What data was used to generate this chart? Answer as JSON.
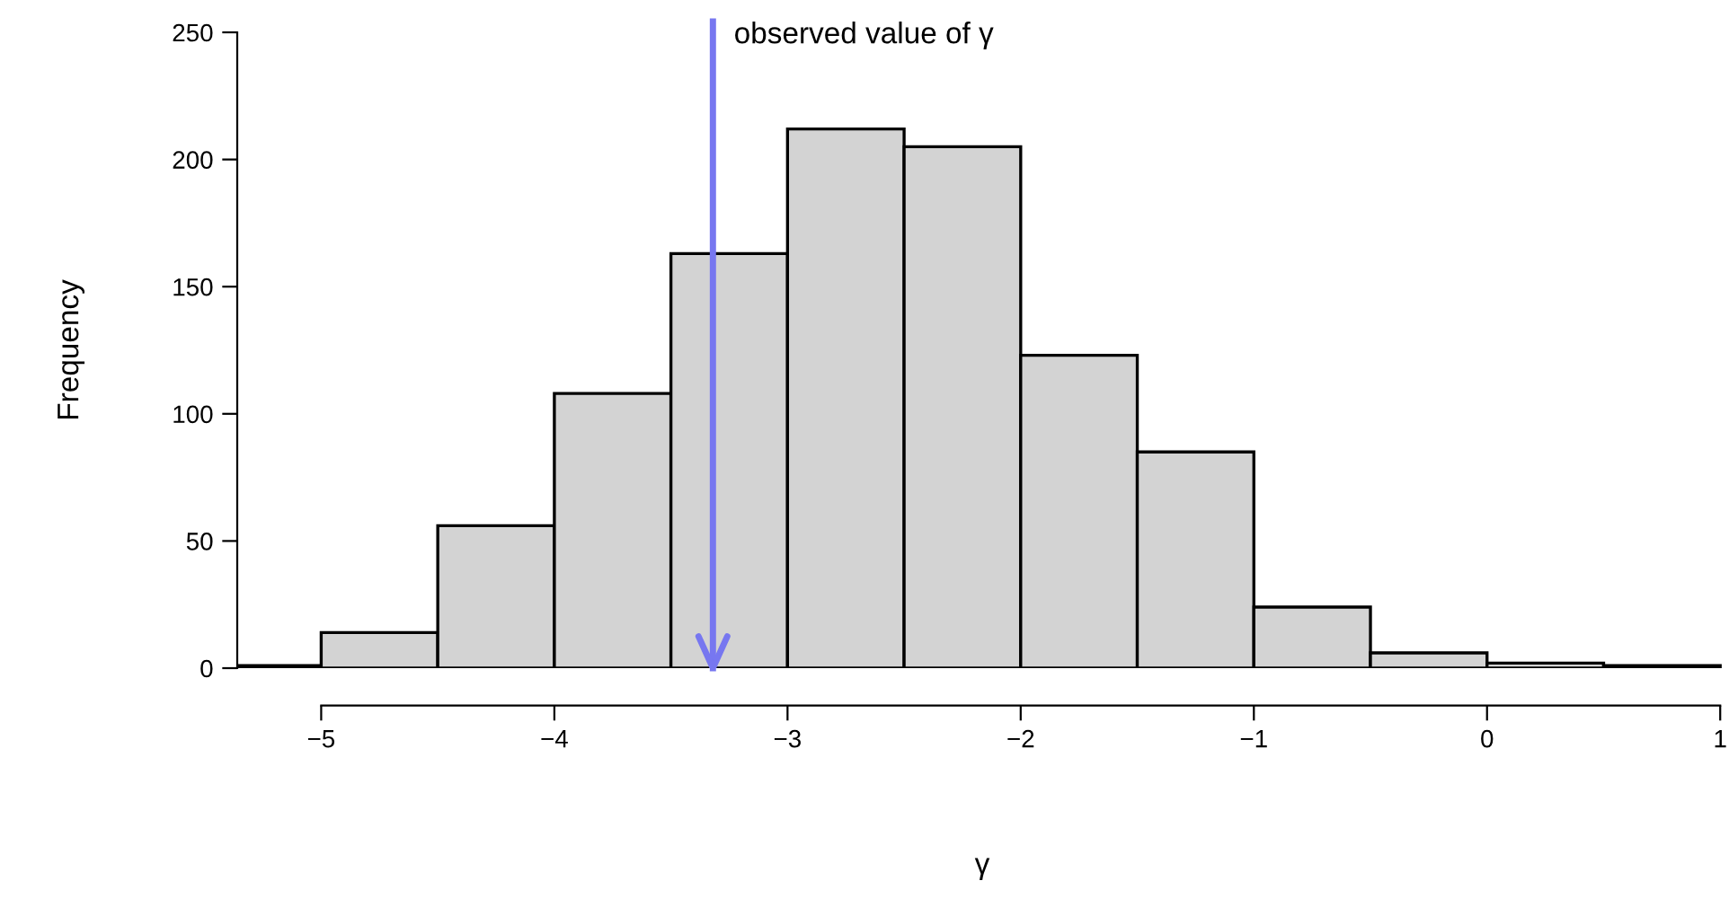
{
  "chart_data": {
    "type": "histogram",
    "xlabel": "γ",
    "ylabel": "Frequency",
    "bins": [
      -5.5,
      -5,
      -4.5,
      -4,
      -3.5,
      -3,
      -2.5,
      -2,
      -1.5,
      -1,
      -0.5,
      0,
      0.5,
      1
    ],
    "values": [
      1,
      14,
      56,
      108,
      163,
      212,
      205,
      123,
      85,
      24,
      6,
      2,
      1
    ],
    "color": "#d3d3d3",
    "xlim": [
      -5.36,
      1.03
    ],
    "ylim": [
      0,
      250
    ],
    "xticks": [
      {
        "value": -5,
        "label": "−5"
      },
      {
        "value": -4,
        "label": "−4"
      },
      {
        "value": -3,
        "label": "−3"
      },
      {
        "value": -2,
        "label": "−2"
      },
      {
        "value": -1,
        "label": "−1"
      },
      0,
      1
    ],
    "yticks": [
      0,
      50,
      100,
      150,
      200,
      250
    ],
    "grid": false,
    "ref_lines": [
      {
        "axis": "x",
        "value": -3.32,
        "label": "observed value of γ",
        "color": "#7777f0"
      }
    ]
  }
}
